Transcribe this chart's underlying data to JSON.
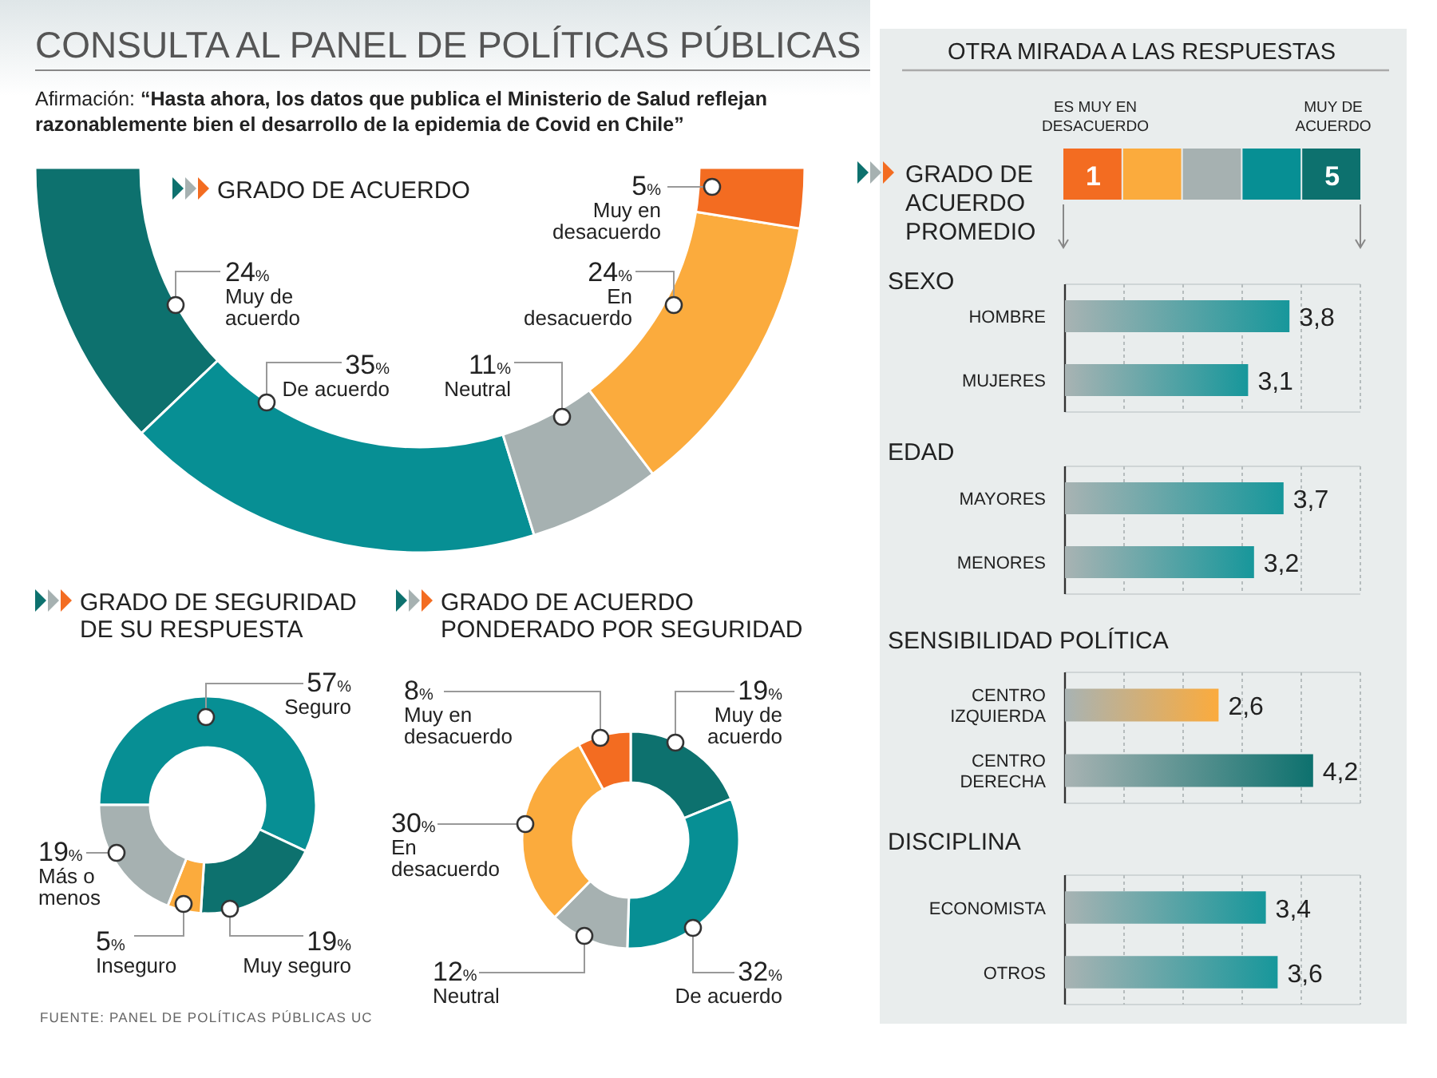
{
  "chart_data": [
    {
      "type": "other",
      "title": "CONSULTA AL PANEL DE POLÍTICAS PÚBLICAS",
      "subtitle": "Afirmación: “Hasta ahora, los datos que publica el Ministerio de Salud reflejan razonablemente bien el desarrollo de la epidemia de Covid en Chile”",
      "annotations": [
        "FUENTE: PANEL DE POLÍTICAS PÚBLICAS UC"
      ]
    },
    {
      "type": "donut",
      "title": "GRADO DE ACUERDO",
      "categories": [
        "Muy de acuerdo",
        "De acuerdo",
        "Neutral",
        "En desacuerdo",
        "Muy en desacuerdo"
      ],
      "values": [
        24,
        35,
        11,
        24,
        5
      ],
      "value_labels": [
        "24%",
        "35%",
        "11%",
        "24%",
        "5%"
      ],
      "colors": [
        "#0d716e",
        "#078f94",
        "#a6b1b1",
        "#fbab3d",
        "#f36c21"
      ]
    },
    {
      "type": "donut",
      "title": "GRADO DE SEGURIDAD DE SU RESPUESTA",
      "categories": [
        "Seguro",
        "Muy seguro",
        "Inseguro",
        "Más o menos"
      ],
      "values": [
        57,
        19,
        5,
        19
      ],
      "value_labels": [
        "57%",
        "19%",
        "5%",
        "19%"
      ],
      "colors": [
        "#078f94",
        "#0d716e",
        "#fbab3d",
        "#a6b1b1"
      ]
    },
    {
      "type": "donut",
      "title": "GRADO DE ACUERDO PONDERADO POR SEGURIDAD",
      "categories": [
        "Muy de acuerdo",
        "De acuerdo",
        "Neutral",
        "En desacuerdo",
        "Muy en desacuerdo"
      ],
      "values": [
        19,
        32,
        12,
        30,
        8
      ],
      "value_labels": [
        "19%",
        "32%",
        "12%",
        "30%",
        "8%"
      ],
      "colors": [
        "#0d716e",
        "#078f94",
        "#a6b1b1",
        "#fbab3d",
        "#f36c21"
      ]
    },
    {
      "type": "other",
      "title": "OTRA MIRADA A LAS RESPUESTAS",
      "legend_title": "GRADO DE ACUERDO PROMEDIO",
      "categories": [
        "1",
        null,
        null,
        null,
        "5"
      ],
      "colors": [
        "#f36c21",
        "#fbab3d",
        "#a6b1b1",
        "#078f94",
        "#0d716e"
      ],
      "annotations": [
        "ES MUY EN DESACUERDO",
        "MUY DE ACUERDO"
      ]
    },
    {
      "type": "bar",
      "orientation": "horizontal",
      "title": "SEXO",
      "categories": [
        "HOMBRE",
        "MUJERES"
      ],
      "values": [
        3.8,
        3.1
      ],
      "value_labels": [
        "3,8",
        "3,1"
      ],
      "colors": [
        "#17979b",
        "#17979b"
      ],
      "xlim": [
        0,
        5
      ],
      "xticks": [
        {
          "value": 0,
          "label": null
        },
        {
          "value": 1,
          "label": null
        },
        {
          "value": 2,
          "label": null
        },
        {
          "value": 3,
          "label": null
        },
        {
          "value": 4,
          "label": null
        },
        {
          "value": 5,
          "label": null
        }
      ],
      "tick_labels": "y",
      "grid": "x"
    },
    {
      "type": "bar",
      "orientation": "horizontal",
      "title": "EDAD",
      "categories": [
        "MAYORES",
        "MENORES"
      ],
      "values": [
        3.7,
        3.2
      ],
      "value_labels": [
        "3,7",
        "3,2"
      ],
      "colors": [
        "#17979b",
        "#17979b"
      ],
      "xlim": [
        0,
        5
      ],
      "xticks": [
        {
          "value": 0,
          "label": null
        },
        {
          "value": 1,
          "label": null
        },
        {
          "value": 2,
          "label": null
        },
        {
          "value": 3,
          "label": null
        },
        {
          "value": 4,
          "label": null
        },
        {
          "value": 5,
          "label": null
        }
      ],
      "tick_labels": "y",
      "grid": "x"
    },
    {
      "type": "bar",
      "orientation": "horizontal",
      "title": "SENSIBILIDAD POLÍTICA",
      "categories": [
        "CENTRO IZQUIERDA",
        "CENTRO DERECHA"
      ],
      "values": [
        2.6,
        4.2
      ],
      "value_labels": [
        "2,6",
        "4,2"
      ],
      "colors": [
        "#fbab3d",
        "#0d716e"
      ],
      "xlim": [
        0,
        5
      ],
      "xticks": [
        {
          "value": 0,
          "label": null
        },
        {
          "value": 1,
          "label": null
        },
        {
          "value": 2,
          "label": null
        },
        {
          "value": 3,
          "label": null
        },
        {
          "value": 4,
          "label": null
        },
        {
          "value": 5,
          "label": null
        }
      ],
      "tick_labels": "y",
      "grid": "x"
    },
    {
      "type": "bar",
      "orientation": "horizontal",
      "title": "DISCIPLINA",
      "categories": [
        "ECONOMISTA",
        "OTROS"
      ],
      "values": [
        3.4,
        3.6
      ],
      "value_labels": [
        "3,4",
        "3,6"
      ],
      "colors": [
        "#17979b",
        "#17979b"
      ],
      "xlim": [
        0,
        5
      ],
      "xticks": [
        {
          "value": 0,
          "label": null
        },
        {
          "value": 1,
          "label": null
        },
        {
          "value": 2,
          "label": null
        },
        {
          "value": 3,
          "label": null
        },
        {
          "value": 4,
          "label": null
        },
        {
          "value": 5,
          "label": null
        }
      ],
      "tick_labels": "y",
      "grid": "x"
    }
  ]
}
